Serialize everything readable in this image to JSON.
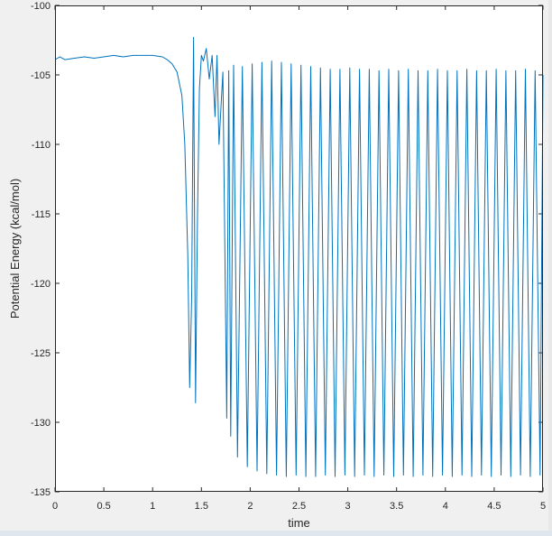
{
  "chart_data": {
    "type": "line",
    "title": "",
    "xlabel": "time",
    "ylabel": "Potential Energy (kcal/mol)",
    "xlim": [
      0,
      5
    ],
    "ylim": [
      -135,
      -100
    ],
    "x_ticks": [
      0,
      0.5,
      1,
      1.5,
      2,
      2.5,
      3,
      3.5,
      4,
      4.5,
      5
    ],
    "x_tick_labels": [
      "0",
      "0.5",
      "1",
      "1.5",
      "2",
      "2.5",
      "3",
      "3.5",
      "4",
      "4.5",
      "5"
    ],
    "y_ticks": [
      -135,
      -130,
      -125,
      -120,
      -115,
      -110,
      -105,
      -100
    ],
    "y_tick_labels": [
      "-135",
      "-130",
      "-125",
      "-120",
      "-115",
      "-110",
      "-105",
      "-100"
    ],
    "grid": false,
    "line_color": "#0072bd",
    "series": [
      {
        "x": [
          0,
          0.05,
          0.1,
          0.2,
          0.3,
          0.4,
          0.5,
          0.6,
          0.7,
          0.8,
          0.9,
          1.0,
          1.1,
          1.15,
          1.2,
          1.25,
          1.3,
          1.33,
          1.36,
          1.38,
          1.4,
          1.42,
          1.44,
          1.46,
          1.48,
          1.5,
          1.52,
          1.55,
          1.58,
          1.61,
          1.64,
          1.66,
          1.68,
          1.72,
          1.76,
          1.78,
          1.8,
          1.83,
          1.87,
          1.92,
          1.97,
          2.02,
          2.07,
          2.12,
          2.17,
          2.22,
          2.27,
          2.32,
          2.37,
          2.42,
          2.47,
          2.52,
          2.57,
          2.62,
          2.67,
          2.72,
          2.77,
          2.82,
          2.87,
          2.92,
          2.97,
          3.02,
          3.07,
          3.12,
          3.17,
          3.22,
          3.27,
          3.32,
          3.37,
          3.42,
          3.47,
          3.52,
          3.57,
          3.62,
          3.67,
          3.72,
          3.77,
          3.82,
          3.87,
          3.92,
          3.97,
          4.02,
          4.07,
          4.12,
          4.17,
          4.22,
          4.27,
          4.32,
          4.37,
          4.42,
          4.47,
          4.52,
          4.57,
          4.62,
          4.67,
          4.72,
          4.77,
          4.82,
          4.87,
          4.92,
          4.97,
          5.0
        ],
        "y": [
          -103.9,
          -103.7,
          -103.9,
          -103.8,
          -103.7,
          -103.8,
          -103.7,
          -103.6,
          -103.7,
          -103.6,
          -103.6,
          -103.6,
          -103.7,
          -103.9,
          -104.2,
          -104.8,
          -106.5,
          -110.0,
          -118.0,
          -127.5,
          -121.0,
          -102.3,
          -128.6,
          -115.0,
          -106.0,
          -103.6,
          -104.0,
          -103.1,
          -105.3,
          -103.6,
          -108.0,
          -103.6,
          -110.0,
          -104.8,
          -129.7,
          -104.7,
          -131.0,
          -104.3,
          -132.5,
          -104.4,
          -133.2,
          -104.2,
          -133.5,
          -104.1,
          -133.7,
          -104.0,
          -133.8,
          -104.1,
          -133.9,
          -104.2,
          -133.8,
          -104.3,
          -133.9,
          -104.4,
          -133.9,
          -104.5,
          -133.8,
          -104.6,
          -133.9,
          -104.6,
          -133.8,
          -104.5,
          -133.9,
          -104.6,
          -133.8,
          -104.6,
          -133.9,
          -104.7,
          -133.8,
          -104.6,
          -133.9,
          -104.7,
          -133.8,
          -104.6,
          -133.9,
          -104.7,
          -133.8,
          -104.7,
          -133.9,
          -104.6,
          -133.8,
          -104.7,
          -133.9,
          -104.7,
          -133.8,
          -104.6,
          -133.9,
          -104.7,
          -133.8,
          -104.7,
          -133.9,
          -104.6,
          -133.8,
          -104.7,
          -133.9,
          -104.7,
          -133.8,
          -104.6,
          -133.9,
          -104.7,
          -133.8,
          -105.0
        ]
      }
    ]
  }
}
